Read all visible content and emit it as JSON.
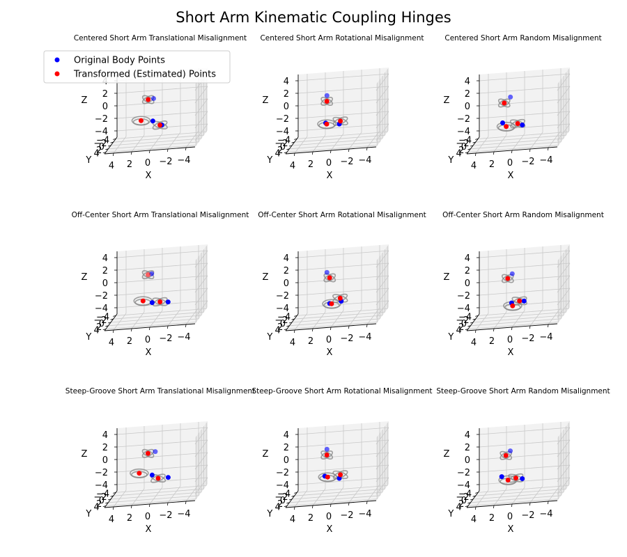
{
  "figure": {
    "title": "Short Arm Kinematic Coupling Hinges"
  },
  "legend": {
    "placement": "upper-left of first subplot",
    "entries": [
      {
        "label": "Original Body Points",
        "color": "#0000ff"
      },
      {
        "label": "Transformed (Estimated) Points",
        "color": "#ff0000"
      }
    ]
  },
  "chart_data": [
    {
      "type": "scatter3d",
      "title": "Centered Short Arm Translational Misalignment",
      "xlabel": "X",
      "ylabel": "Y",
      "zlabel": "Z",
      "xticks": [
        "4",
        "2",
        "0",
        "−2",
        "−4"
      ],
      "yticks": [
        "−4",
        "−2",
        "0",
        "2",
        "4"
      ],
      "zticks": [
        "4",
        "2",
        "0",
        "−2",
        "−4"
      ],
      "xlim": [
        -5,
        5
      ],
      "ylim": [
        -5,
        5
      ],
      "zlim": [
        -5,
        5
      ],
      "grid": true,
      "series": [
        {
          "name": "Original Body Points",
          "color": "#0000ff",
          "points": [
            [
              0.2,
              0.5,
              2.1
            ],
            [
              0.3,
              0.4,
              -1.5
            ],
            [
              -0.6,
              -0.2,
              -2.4
            ]
          ]
        },
        {
          "name": "Transformed (Estimated) Points",
          "color": "#ff0000",
          "points": [
            [
              0.8,
              0.5,
              2.0
            ],
            [
              1.6,
              0.4,
              -1.3
            ],
            [
              -0.4,
              -0.2,
              -2.4
            ]
          ]
        }
      ]
    },
    {
      "type": "scatter3d",
      "title": "Centered Short Arm Rotational Misalignment",
      "xlabel": "X",
      "ylabel": "Y",
      "zlabel": "Z",
      "xticks": [
        "4",
        "2",
        "0",
        "−2",
        "−4"
      ],
      "yticks": [
        "−4",
        "−2",
        "0",
        "2",
        "4"
      ],
      "zticks": [
        "4",
        "2",
        "0",
        "−2",
        "−4"
      ],
      "xlim": [
        -5,
        5
      ],
      "ylim": [
        -5,
        5
      ],
      "zlim": [
        -5,
        5
      ],
      "grid": true,
      "series": [
        {
          "name": "Original Body Points",
          "color": "#0000ff",
          "points": [
            [
              1.1,
              0.2,
              2.6
            ],
            [
              1.2,
              0.5,
              -1.7
            ],
            [
              -0.2,
              -0.2,
              -2.2
            ]
          ]
        },
        {
          "name": "Transformed (Estimated) Points",
          "color": "#ff0000",
          "points": [
            [
              1.1,
              0.3,
              1.7
            ],
            [
              1.1,
              0.4,
              -1.9
            ],
            [
              -0.3,
              -0.4,
              -1.8
            ]
          ]
        }
      ]
    },
    {
      "type": "scatter3d",
      "title": "Centered Short Arm Random Misalignment",
      "xlabel": "X",
      "ylabel": "Y",
      "zlabel": "Z",
      "xticks": [
        "4",
        "2",
        "0",
        "−2",
        "−4"
      ],
      "yticks": [
        "−4",
        "−2",
        "0",
        "2",
        "4"
      ],
      "zticks": [
        "4",
        "2",
        "0",
        "−2",
        "−4"
      ],
      "xlim": [
        -5,
        5
      ],
      "ylim": [
        -5,
        5
      ],
      "zlim": [
        -5,
        5
      ],
      "grid": true,
      "series": [
        {
          "name": "Original Body Points",
          "color": "#0000ff",
          "points": [
            [
              0.8,
              0.5,
              2.4
            ],
            [
              1.7,
              0.2,
              -1.7
            ],
            [
              -0.4,
              -0.3,
              -2.4
            ]
          ]
        },
        {
          "name": "Transformed (Estimated) Points",
          "color": "#ff0000",
          "points": [
            [
              1.5,
              0.4,
              1.5
            ],
            [
              1.3,
              0.3,
              -2.3
            ],
            [
              0.1,
              -0.2,
              -2.1
            ]
          ]
        }
      ]
    },
    {
      "type": "scatter3d",
      "title": "Off-Center Short Arm Translational Misalignment",
      "xlabel": "X",
      "ylabel": "Y",
      "zlabel": "Z",
      "xticks": [
        "4",
        "2",
        "0",
        "−2",
        "−4"
      ],
      "yticks": [
        "−4",
        "−2",
        "0",
        "2",
        "4"
      ],
      "zticks": [
        "4",
        "2",
        "0",
        "−2",
        "−4"
      ],
      "xlim": [
        -5,
        5
      ],
      "ylim": [
        -5,
        5
      ],
      "zlim": [
        -5,
        5
      ],
      "grid": true,
      "series": [
        {
          "name": "Original Body Points",
          "color": "#0000ff",
          "points": [
            [
              0.4,
              0.6,
              2.4
            ],
            [
              0.4,
              0.2,
              -2.3
            ],
            [
              -1.3,
              -0.2,
              -2.5
            ]
          ]
        },
        {
          "name": "Transformed (Estimated) Points",
          "color": "#ff0000",
          "points": [
            [
              0.8,
              0.6,
              2.3
            ],
            [
              1.4,
              0.3,
              -1.9
            ],
            [
              -0.4,
              -0.3,
              -2.4
            ]
          ]
        }
      ]
    },
    {
      "type": "scatter3d",
      "title": "Off-Center Short Arm Rotational Misalignment",
      "xlabel": "X",
      "ylabel": "Y",
      "zlabel": "Z",
      "xticks": [
        "4",
        "2",
        "0",
        "−2",
        "−4"
      ],
      "yticks": [
        "−4",
        "−2",
        "0",
        "2",
        "4"
      ],
      "zticks": [
        "4",
        "2",
        "0",
        "−2",
        "−4"
      ],
      "xlim": [
        -5,
        5
      ],
      "ylim": [
        -5,
        5
      ],
      "zlim": [
        -5,
        5
      ],
      "grid": true,
      "series": [
        {
          "name": "Original Body Points",
          "color": "#0000ff",
          "points": [
            [
              1.1,
              0.2,
              2.6
            ],
            [
              0.8,
              0.2,
              -2.4
            ],
            [
              -0.4,
              -0.3,
              -2.3
            ]
          ]
        },
        {
          "name": "Transformed (Estimated) Points",
          "color": "#ff0000",
          "points": [
            [
              0.8,
              0.2,
              1.7
            ],
            [
              0.6,
              0.1,
              -2.5
            ],
            [
              -0.3,
              -0.2,
              -1.8
            ]
          ]
        }
      ]
    },
    {
      "type": "scatter3d",
      "title": "Off-Center Short Arm Random Misalignment",
      "xlabel": "X",
      "ylabel": "Y",
      "zlabel": "Z",
      "xticks": [
        "4",
        "2",
        "0",
        "−2",
        "−4"
      ],
      "yticks": [
        "−4",
        "−2",
        "0",
        "2",
        "4"
      ],
      "zticks": [
        "4",
        "2",
        "0",
        "−2",
        "−4"
      ],
      "xlim": [
        -5,
        5
      ],
      "ylim": [
        -5,
        5
      ],
      "zlim": [
        -5,
        5
      ],
      "grid": true,
      "series": [
        {
          "name": "Original Body Points",
          "color": "#0000ff",
          "points": [
            [
              0.6,
              0.5,
              2.4
            ],
            [
              0.7,
              0.3,
              -2.3
            ],
            [
              -0.6,
              -0.3,
              -2.3
            ]
          ]
        },
        {
          "name": "Transformed (Estimated) Points",
          "color": "#ff0000",
          "points": [
            [
              1.1,
              0.5,
              1.7
            ],
            [
              0.6,
              0.2,
              -2.8
            ],
            [
              -0.1,
              -0.2,
              -2.2
            ]
          ]
        }
      ]
    },
    {
      "type": "scatter3d",
      "title": "Steep-Groove Short Arm Translational Misalignment",
      "xlabel": "X",
      "ylabel": "Y",
      "zlabel": "Z",
      "xticks": [
        "4",
        "2",
        "0",
        "−2",
        "−4"
      ],
      "yticks": [
        "−4",
        "−2",
        "0",
        "2",
        "4"
      ],
      "zticks": [
        "4",
        "2",
        "0",
        "−2",
        "−4"
      ],
      "xlim": [
        -5,
        5
      ],
      "ylim": [
        -5,
        5
      ],
      "zlim": [
        -5,
        5
      ],
      "grid": true,
      "series": [
        {
          "name": "Original Body Points",
          "color": "#0000ff",
          "points": [
            [
              0.0,
              0.6,
              2.2
            ],
            [
              0.4,
              0.2,
              -1.6
            ],
            [
              -1.3,
              -0.3,
              -2.3
            ]
          ]
        },
        {
          "name": "Transformed (Estimated) Points",
          "color": "#ff0000",
          "points": [
            [
              0.8,
              0.6,
              2.0
            ],
            [
              1.8,
              0.4,
              -1.1
            ],
            [
              -0.2,
              -0.2,
              -2.3
            ]
          ]
        }
      ]
    },
    {
      "type": "scatter3d",
      "title": "Steep-Groove Short Arm Rotational Misalignment",
      "xlabel": "X",
      "ylabel": "Y",
      "zlabel": "Z",
      "xticks": [
        "4",
        "2",
        "0",
        "−2",
        "−4"
      ],
      "yticks": [
        "−4",
        "−2",
        "0",
        "2",
        "4"
      ],
      "zticks": [
        "4",
        "2",
        "0",
        "−2",
        "−4"
      ],
      "xlim": [
        -5,
        5
      ],
      "ylim": [
        -5,
        5
      ],
      "zlim": [
        -5,
        5
      ],
      "grid": true,
      "series": [
        {
          "name": "Original Body Points",
          "color": "#0000ff",
          "points": [
            [
              1.1,
              0.2,
              2.6
            ],
            [
              1.3,
              0.5,
              -1.6
            ],
            [
              -0.2,
              -0.2,
              -2.3
            ]
          ]
        },
        {
          "name": "Transformed (Estimated) Points",
          "color": "#ff0000",
          "points": [
            [
              1.1,
              0.3,
              1.7
            ],
            [
              1.0,
              0.4,
              -1.8
            ],
            [
              -0.3,
              -0.4,
              -1.8
            ]
          ]
        }
      ]
    },
    {
      "type": "scatter3d",
      "title": "Steep-Groove Short Arm Random Misalignment",
      "xlabel": "X",
      "ylabel": "Y",
      "zlabel": "Z",
      "xticks": [
        "4",
        "2",
        "0",
        "−2",
        "−4"
      ],
      "yticks": [
        "−4",
        "−2",
        "0",
        "2",
        "4"
      ],
      "zticks": [
        "4",
        "2",
        "0",
        "−2",
        "−4"
      ],
      "xlim": [
        -5,
        5
      ],
      "ylim": [
        -5,
        5
      ],
      "zlim": [
        -5,
        5
      ],
      "grid": true,
      "series": [
        {
          "name": "Original Body Points",
          "color": "#0000ff",
          "points": [
            [
              0.8,
              0.6,
              2.4
            ],
            [
              1.8,
              0.2,
              -1.7
            ],
            [
              -0.4,
              -0.3,
              -2.4
            ]
          ]
        },
        {
          "name": "Transformed (Estimated) Points",
          "color": "#ff0000",
          "points": [
            [
              1.3,
              0.5,
              1.7
            ],
            [
              1.1,
              0.3,
              -2.3
            ],
            [
              0.3,
              -0.2,
              -2.2
            ]
          ]
        }
      ]
    }
  ]
}
